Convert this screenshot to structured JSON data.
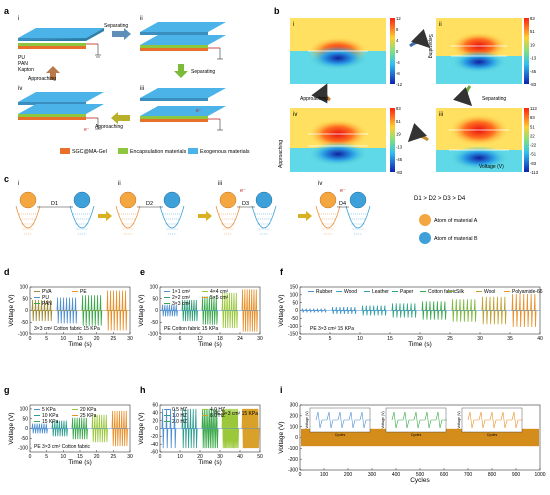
{
  "panel_a": {
    "label": "a",
    "steps": [
      "i",
      "ii",
      "iii",
      "iv"
    ],
    "arrows": {
      "sep1": "Separating",
      "sep2": "Separating",
      "app1": "Approaching",
      "app2": "Approaching"
    },
    "electron": "e⁻",
    "legend": [
      "SGC@MA-Gel",
      "Encapsulation materials",
      "Exogenous materials"
    ],
    "layer_legend": [
      "PU",
      "PAN",
      "Kapton"
    ],
    "colors": {
      "sgc": "#e8702a",
      "encap": "#8dc63f",
      "exo": "#4cb3e8"
    }
  },
  "panel_b": {
    "label": "b",
    "steps": [
      "i",
      "ii",
      "iii",
      "iv"
    ],
    "colorbars": [
      {
        "ticks": [
          "12",
          "8",
          "4",
          "0",
          "-4",
          "-8",
          "-12"
        ]
      },
      {
        "ticks": [
          "83",
          "51",
          "19",
          "-13",
          "-45",
          "-83"
        ]
      },
      {
        "ticks": [
          "113",
          "83",
          "51",
          "22",
          "-22",
          "-51",
          "-83",
          "-113"
        ]
      },
      {
        "ticks": [
          "83",
          "51",
          "19",
          "-13",
          "-45",
          "-83"
        ]
      }
    ],
    "arrows": {
      "sep1": "Separating",
      "sep2": "Separating",
      "app1": "Approaching",
      "app2": "Approaching"
    },
    "unit": "Voltage (V)"
  },
  "panel_c": {
    "label": "c",
    "steps": [
      "i",
      "ii",
      "iii",
      "iv"
    ],
    "distances": [
      "D1",
      "D2",
      "D3",
      "D4"
    ],
    "relation": "D1 > D2 > D3 > D4",
    "legend": [
      "Atom of material A",
      "Atom of material B"
    ],
    "electron": "e⁻",
    "colors": {
      "atom_a": "#f4a640",
      "atom_b": "#3ea0d8"
    }
  },
  "chart_data": [
    {
      "id": "d",
      "type": "line",
      "xlabel": "Time (s)",
      "ylabel": "Voltage (V)",
      "xlim": [
        0,
        30
      ],
      "ylim": [
        -100,
        100
      ],
      "xticks": [
        "0",
        "5",
        "10",
        "15",
        "20",
        "25",
        "30"
      ],
      "yticks": [
        "100",
        "50",
        "0",
        "-50",
        "-100"
      ],
      "series": [
        {
          "name": "PVA",
          "color": "#9e8b3a",
          "amplitude": 45
        },
        {
          "name": "PU",
          "color": "#4f8fd0",
          "amplitude": 55
        },
        {
          "name": "PAN",
          "color": "#3aa84a",
          "amplitude": 65
        },
        {
          "name": "PE",
          "color": "#e8902a",
          "amplitude": 85
        }
      ],
      "annotation": "3×3 cm²   Cotton fabric   15 KPa"
    },
    {
      "id": "e",
      "type": "line",
      "xlabel": "Time (s)",
      "ylabel": "Voltage (V)",
      "xlim": [
        0,
        30
      ],
      "ylim": [
        -100,
        100
      ],
      "xticks": [
        "0",
        "6",
        "12",
        "18",
        "24",
        "30"
      ],
      "yticks": [
        "100",
        "50",
        "0",
        "-50",
        "-100"
      ],
      "series": [
        {
          "name": "1×1 cm²",
          "color": "#4f8fd0",
          "amplitude": 25
        },
        {
          "name": "2×2 cm²",
          "color": "#2f9e78",
          "amplitude": 45
        },
        {
          "name": "3×3 cm²",
          "color": "#3aa84a",
          "amplitude": 60
        },
        {
          "name": "4×4 cm²",
          "color": "#9bc83a",
          "amplitude": 75
        },
        {
          "name": "5×5 cm²",
          "color": "#e8902a",
          "amplitude": 90
        }
      ],
      "annotation": "PE   Cotton fabric   15 KPa"
    },
    {
      "id": "f",
      "type": "line",
      "xlabel": "Time (s)",
      "ylabel": "Voltage (V)",
      "xlim": [
        0,
        42
      ],
      "ylim": [
        -150,
        150
      ],
      "xticks": [
        "0",
        "5",
        "10",
        "15",
        "20",
        "25",
        "30",
        "35",
        "40"
      ],
      "yticks": [
        "150",
        "100",
        "50",
        "0",
        "-50",
        "-100",
        "-150"
      ],
      "series": [
        {
          "name": "Rubber",
          "color": "#4f8fd0",
          "amplitude": 12
        },
        {
          "name": "Wood",
          "color": "#3f98c8",
          "amplitude": 22
        },
        {
          "name": "Leather",
          "color": "#2fa0a8",
          "amplitude": 32
        },
        {
          "name": "Paper",
          "color": "#33a580",
          "amplitude": 45
        },
        {
          "name": "Cotton fabric",
          "color": "#3aa84a",
          "amplitude": 58
        },
        {
          "name": "Silk",
          "color": "#7ab83a",
          "amplitude": 72
        },
        {
          "name": "Wool",
          "color": "#c0a030",
          "amplitude": 88
        },
        {
          "name": "Polyamide-66",
          "color": "#e8902a",
          "amplitude": 105
        }
      ],
      "annotation": "PE   3×3 cm²   15 KPa"
    },
    {
      "id": "g",
      "type": "line",
      "xlabel": "Time (s)",
      "ylabel": "Voltage (V)",
      "xlim": [
        0,
        30
      ],
      "ylim": [
        -120,
        120
      ],
      "xticks": [
        "0",
        "5",
        "10",
        "15",
        "20",
        "25",
        "30"
      ],
      "yticks": [
        "100",
        "50",
        "0",
        "-50",
        "-100"
      ],
      "series": [
        {
          "name": "5 KPa",
          "color": "#4f8fd0",
          "amplitude": 25
        },
        {
          "name": "10 KPa",
          "color": "#2f9e90",
          "amplitude": 40
        },
        {
          "name": "15 KPa",
          "color": "#3aa84a",
          "amplitude": 55
        },
        {
          "name": "20 KPa",
          "color": "#9bc83a",
          "amplitude": 70
        },
        {
          "name": "25 KPa",
          "color": "#e8902a",
          "amplitude": 90
        }
      ],
      "annotation": "PE   3×3 cm²   Cotton fabric"
    },
    {
      "id": "h",
      "type": "line",
      "xlabel": "Time (s)",
      "ylabel": "Voltage (V)",
      "xlim": [
        0,
        50
      ],
      "ylim": [
        -60,
        60
      ],
      "xticks": [
        "0",
        "10",
        "20",
        "30",
        "40",
        "50"
      ],
      "yticks": [
        "60",
        "40",
        "20",
        "0",
        "-20",
        "-40",
        "-60"
      ],
      "series": [
        {
          "name": "0.5 HZ",
          "color": "#4f8fd0",
          "amplitude": 50
        },
        {
          "name": "1.0 HZ",
          "color": "#2f9e90",
          "amplitude": 50
        },
        {
          "name": "2.0 HZ",
          "color": "#3aa84a",
          "amplitude": 50
        },
        {
          "name": "4.0 HZ",
          "color": "#9bc83a",
          "amplitude": 50
        },
        {
          "name": "8.0 HZ",
          "color": "#d9a02a",
          "amplitude": 50
        }
      ],
      "annotation": "PE   3×3 cm²   15 KPa"
    },
    {
      "id": "i",
      "type": "line",
      "xlabel": "Cycles",
      "ylabel": "Voltage (V)",
      "xlim": [
        0,
        1000
      ],
      "ylim": [
        -300,
        300
      ],
      "xticks": [
        "0",
        "100",
        "200",
        "300",
        "400",
        "500",
        "600",
        "700",
        "800",
        "900",
        "1000"
      ],
      "yticks": [
        "300",
        "200",
        "100",
        "0",
        "-100",
        "-200",
        "-300"
      ],
      "series": [
        {
          "name": "",
          "color": "#d48c1a",
          "amplitude": 80
        }
      ],
      "insets": [
        {
          "xlabel": "Cycles",
          "ylabel": "Voltage (V)",
          "color": "#4f8fd0"
        },
        {
          "xlabel": "Cycles",
          "ylabel": "Voltage (V)",
          "color": "#3aa84a"
        },
        {
          "xlabel": "Cycles",
          "ylabel": "Voltage (V)",
          "color": "#e8902a"
        }
      ]
    }
  ]
}
